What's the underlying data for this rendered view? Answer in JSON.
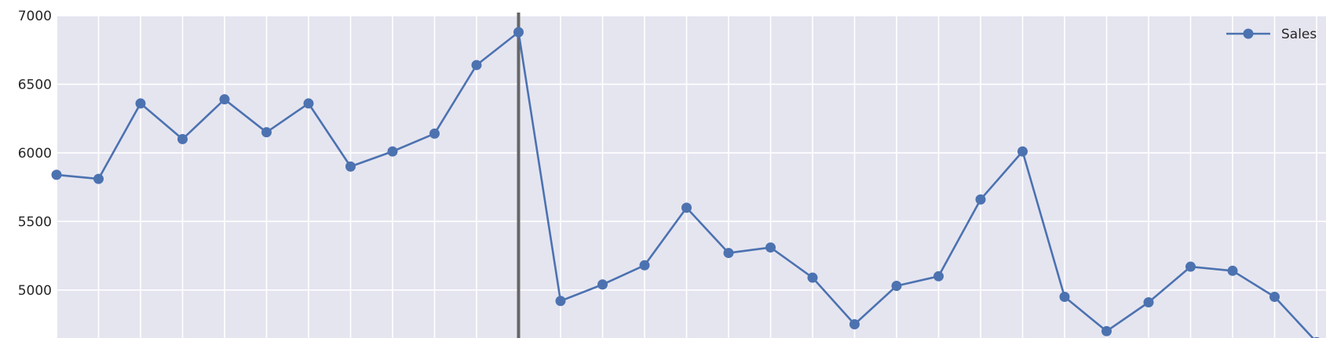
{
  "chart_data": {
    "type": "line",
    "x": [
      0,
      1,
      2,
      3,
      4,
      5,
      6,
      7,
      8,
      9,
      10,
      11,
      12,
      13,
      14,
      15,
      16,
      17,
      18,
      19,
      20,
      21,
      22,
      23,
      24,
      25,
      26,
      27,
      28,
      29,
      30
    ],
    "series": [
      {
        "name": "Sales",
        "values": [
          5840,
          5810,
          6360,
          6100,
          6390,
          6150,
          6360,
          5900,
          6010,
          6140,
          6640,
          6880,
          4920,
          5040,
          5180,
          5600,
          5270,
          5310,
          5090,
          4750,
          5030,
          5100,
          5660,
          6010,
          4950,
          4700,
          4910,
          5170,
          5140,
          4950,
          4620
        ]
      }
    ],
    "ylim": [
      4650,
      7000
    ],
    "yticks": [
      {
        "value": 5000,
        "label": "5000"
      },
      {
        "value": 5500,
        "label": "5500"
      },
      {
        "value": 6000,
        "label": "6000"
      },
      {
        "value": 6500,
        "label": "6500"
      },
      {
        "value": 7000,
        "label": "7000"
      }
    ],
    "vertical_marker_x": 11,
    "grid": true,
    "legend": "top-right",
    "colors": {
      "line": "#4c72b0",
      "background": "#e5e5f0",
      "grid": "#ffffff",
      "marker_line": "#666666"
    }
  }
}
